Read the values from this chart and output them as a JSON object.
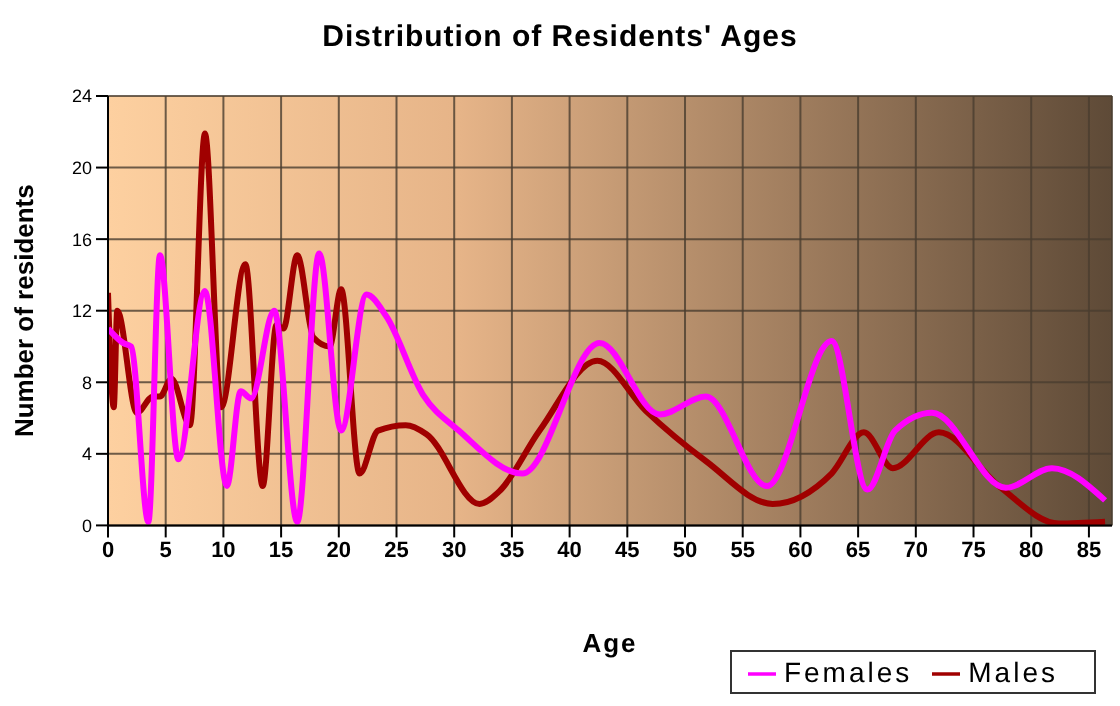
{
  "chart_data": {
    "type": "line",
    "title": "Distribution of Residents' Ages",
    "xlabel": "Age",
    "ylabel": "Number of residents",
    "xlim": [
      0,
      87
    ],
    "xticks": [
      0,
      5,
      10,
      15,
      20,
      25,
      30,
      35,
      40,
      45,
      50,
      55,
      60,
      65,
      70,
      75,
      80,
      85
    ],
    "ylim": [
      0,
      24
    ],
    "yticks": [
      0,
      4,
      8,
      12,
      16,
      20,
      24
    ],
    "grid": true,
    "legend": "bottom right",
    "marker": "none",
    "line_style": "solid",
    "series": [
      {
        "name": "Males",
        "color": "#a00000",
        "x": [
          0,
          0.5,
          0.8,
          2.5,
          3.9,
          4.5,
          5.5,
          7.1,
          8.4,
          9.8,
          11.9,
          13.4,
          14.6,
          15.2,
          16.4,
          17.8,
          19.2,
          20.2,
          21.8,
          23.4,
          25.8,
          27.6,
          32.2,
          33.9,
          37.4,
          42.4,
          46.6,
          51.8,
          57.6,
          62.7,
          65.5,
          68,
          72,
          77.2,
          82.4,
          86.4
        ],
        "values": [
          13,
          6.6,
          12,
          6.3,
          7.2,
          7.2,
          8.2,
          5.6,
          21.9,
          6.6,
          14.6,
          2.2,
          11.2,
          11,
          15.1,
          10.5,
          10,
          13.2,
          2.9,
          5.3,
          5.6,
          5.1,
          1.2,
          1.9,
          5.3,
          9.2,
          6.4,
          3.6,
          1.2,
          2.9,
          5.2,
          3.2,
          5.2,
          2.2,
          0.1,
          0.2
        ]
      },
      {
        "name": "Females",
        "color": "#ff00ff",
        "x": [
          0,
          1.3,
          2,
          3.5,
          4.5,
          6.1,
          8.4,
          10.3,
          11.5,
          12.4,
          14.4,
          16.4,
          18.3,
          20.2,
          22.4,
          24.1,
          27.3,
          30.4,
          35.9,
          42.6,
          47.8,
          51.8,
          57.1,
          62.7,
          65.8,
          68.2,
          71.4,
          77.8,
          81.8,
          86.4
        ],
        "values": [
          11,
          10.2,
          10,
          0.2,
          15.1,
          3.7,
          13.1,
          2.2,
          7.5,
          7.1,
          12,
          0.2,
          15.2,
          5.3,
          12.9,
          11.7,
          7.3,
          5.3,
          2.9,
          10.2,
          6.2,
          7.2,
          2.2,
          10.3,
          2,
          5.3,
          6.3,
          2.1,
          3.2,
          1.4
        ]
      }
    ]
  }
}
